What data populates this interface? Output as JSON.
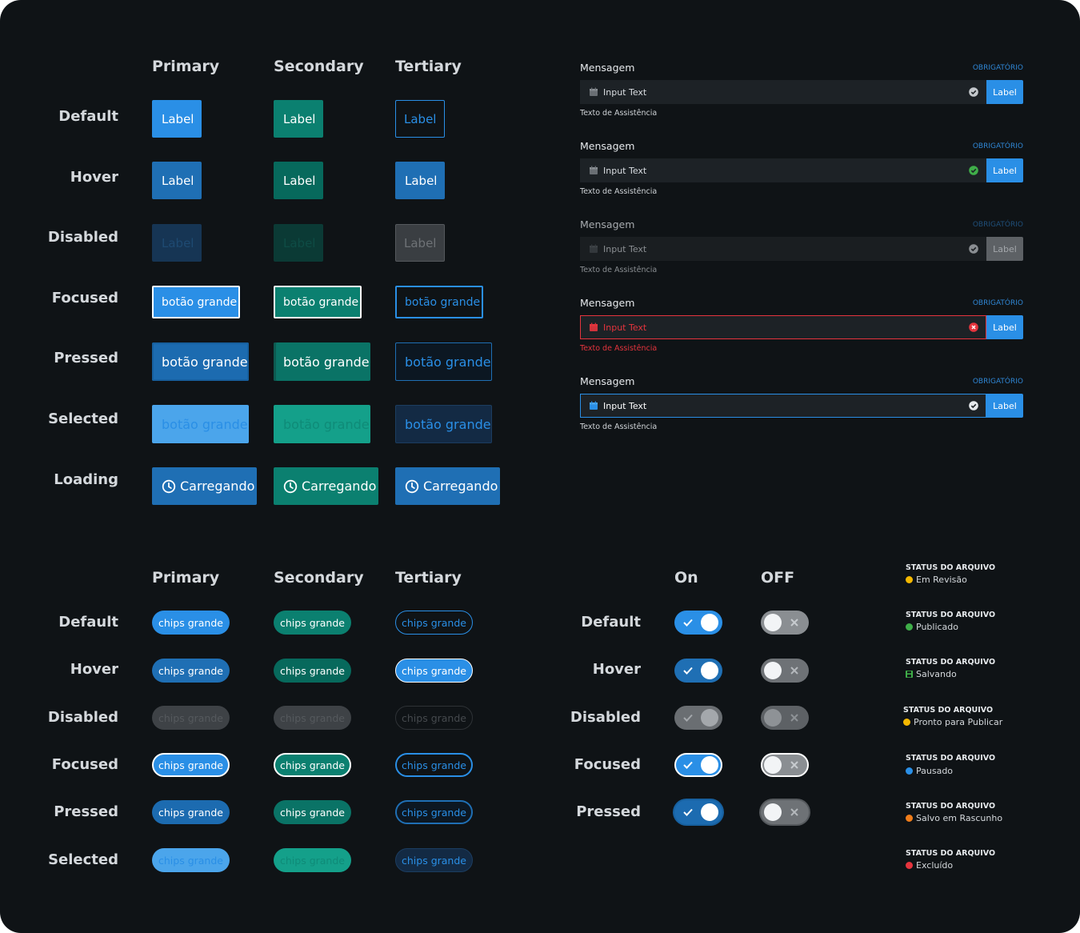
{
  "buttons": {
    "columns": [
      "Primary",
      "Secondary",
      "Tertiary"
    ],
    "rows": [
      "Default",
      "Hover",
      "Disabled",
      "Focused",
      "Pressed",
      "Selected",
      "Loading"
    ],
    "label_text": "Label",
    "large_text": "botão grande",
    "loading_text": "Carregando",
    "loading_icon": "clock-icon"
  },
  "inputs": {
    "fields": [
      {
        "label": "Mensagem",
        "required": "OBRIGATÓRIO",
        "placeholder": "Input Text",
        "helper": "Texto de Assistência",
        "button": "Label",
        "state": "default",
        "status_icon": "check-circle-icon"
      },
      {
        "label": "Mensagem",
        "required": "OBRIGATÓRIO",
        "placeholder": "Input Text",
        "helper": "Texto de Assistência",
        "button": "Label",
        "state": "success",
        "status_icon": "check-circle-icon"
      },
      {
        "label": "Mensagem",
        "required": "OBRIGATÓRIO",
        "placeholder": "Input Text",
        "helper": "Texto de Assistência",
        "button": "Label",
        "state": "disabled",
        "status_icon": "check-circle-icon"
      },
      {
        "label": "Mensagem",
        "required": "OBRIGATÓRIO",
        "placeholder": "Input Text",
        "helper": "Texto de Assistência",
        "button": "Label",
        "state": "error",
        "status_icon": "error-circle-icon"
      },
      {
        "label": "Mensagem",
        "required": "OBRIGATÓRIO",
        "placeholder": "Input Text",
        "helper": "Texto de Assistência",
        "button": "Label",
        "state": "focused",
        "status_icon": "check-circle-icon"
      }
    ],
    "leading_icon": "calendar-icon"
  },
  "chips": {
    "columns": [
      "Primary",
      "Secondary",
      "Tertiary"
    ],
    "rows": [
      "Default",
      "Hover",
      "Disabled",
      "Focused",
      "Pressed",
      "Selected"
    ],
    "chip_text": "chips grande"
  },
  "toggles": {
    "columns": [
      "On",
      "OFF"
    ],
    "rows": [
      "Default",
      "Hover",
      "Disabled",
      "Focused",
      "Pressed"
    ]
  },
  "file_status": [
    {
      "title": "STATUS DO ARQUIVO",
      "value": "Em Revisão",
      "color": "#f5b800",
      "icon": "dot"
    },
    {
      "title": "STATUS DO ARQUIVO",
      "value": "Publicado",
      "color": "#3fae49",
      "icon": "dot"
    },
    {
      "title": "STATUS DO ARQUIVO",
      "value": "Salvando",
      "color": "#3fae49",
      "icon": "save-icon"
    },
    {
      "title": "STATUS DO ARQUIVO",
      "value": "Pronto para Publicar",
      "color": "#f5b800",
      "icon": "dot"
    },
    {
      "title": "STATUS DO ARQUIVO",
      "value": "Pausado",
      "color": "#2a8fe6",
      "icon": "dot"
    },
    {
      "title": "STATUS DO ARQUIVO",
      "value": "Salvo em Rascunho",
      "color": "#f07d1a",
      "icon": "dot"
    },
    {
      "title": "STATUS DO ARQUIVO",
      "value": "Excluído",
      "color": "#e5343d",
      "icon": "dot"
    }
  ],
  "colors": {
    "background": "#0f1316",
    "primary": "#2a8fe6",
    "primary_hover": "#1f6fb4",
    "secondary": "#0b8070",
    "error": "#e5343d",
    "success": "#3fae49"
  }
}
